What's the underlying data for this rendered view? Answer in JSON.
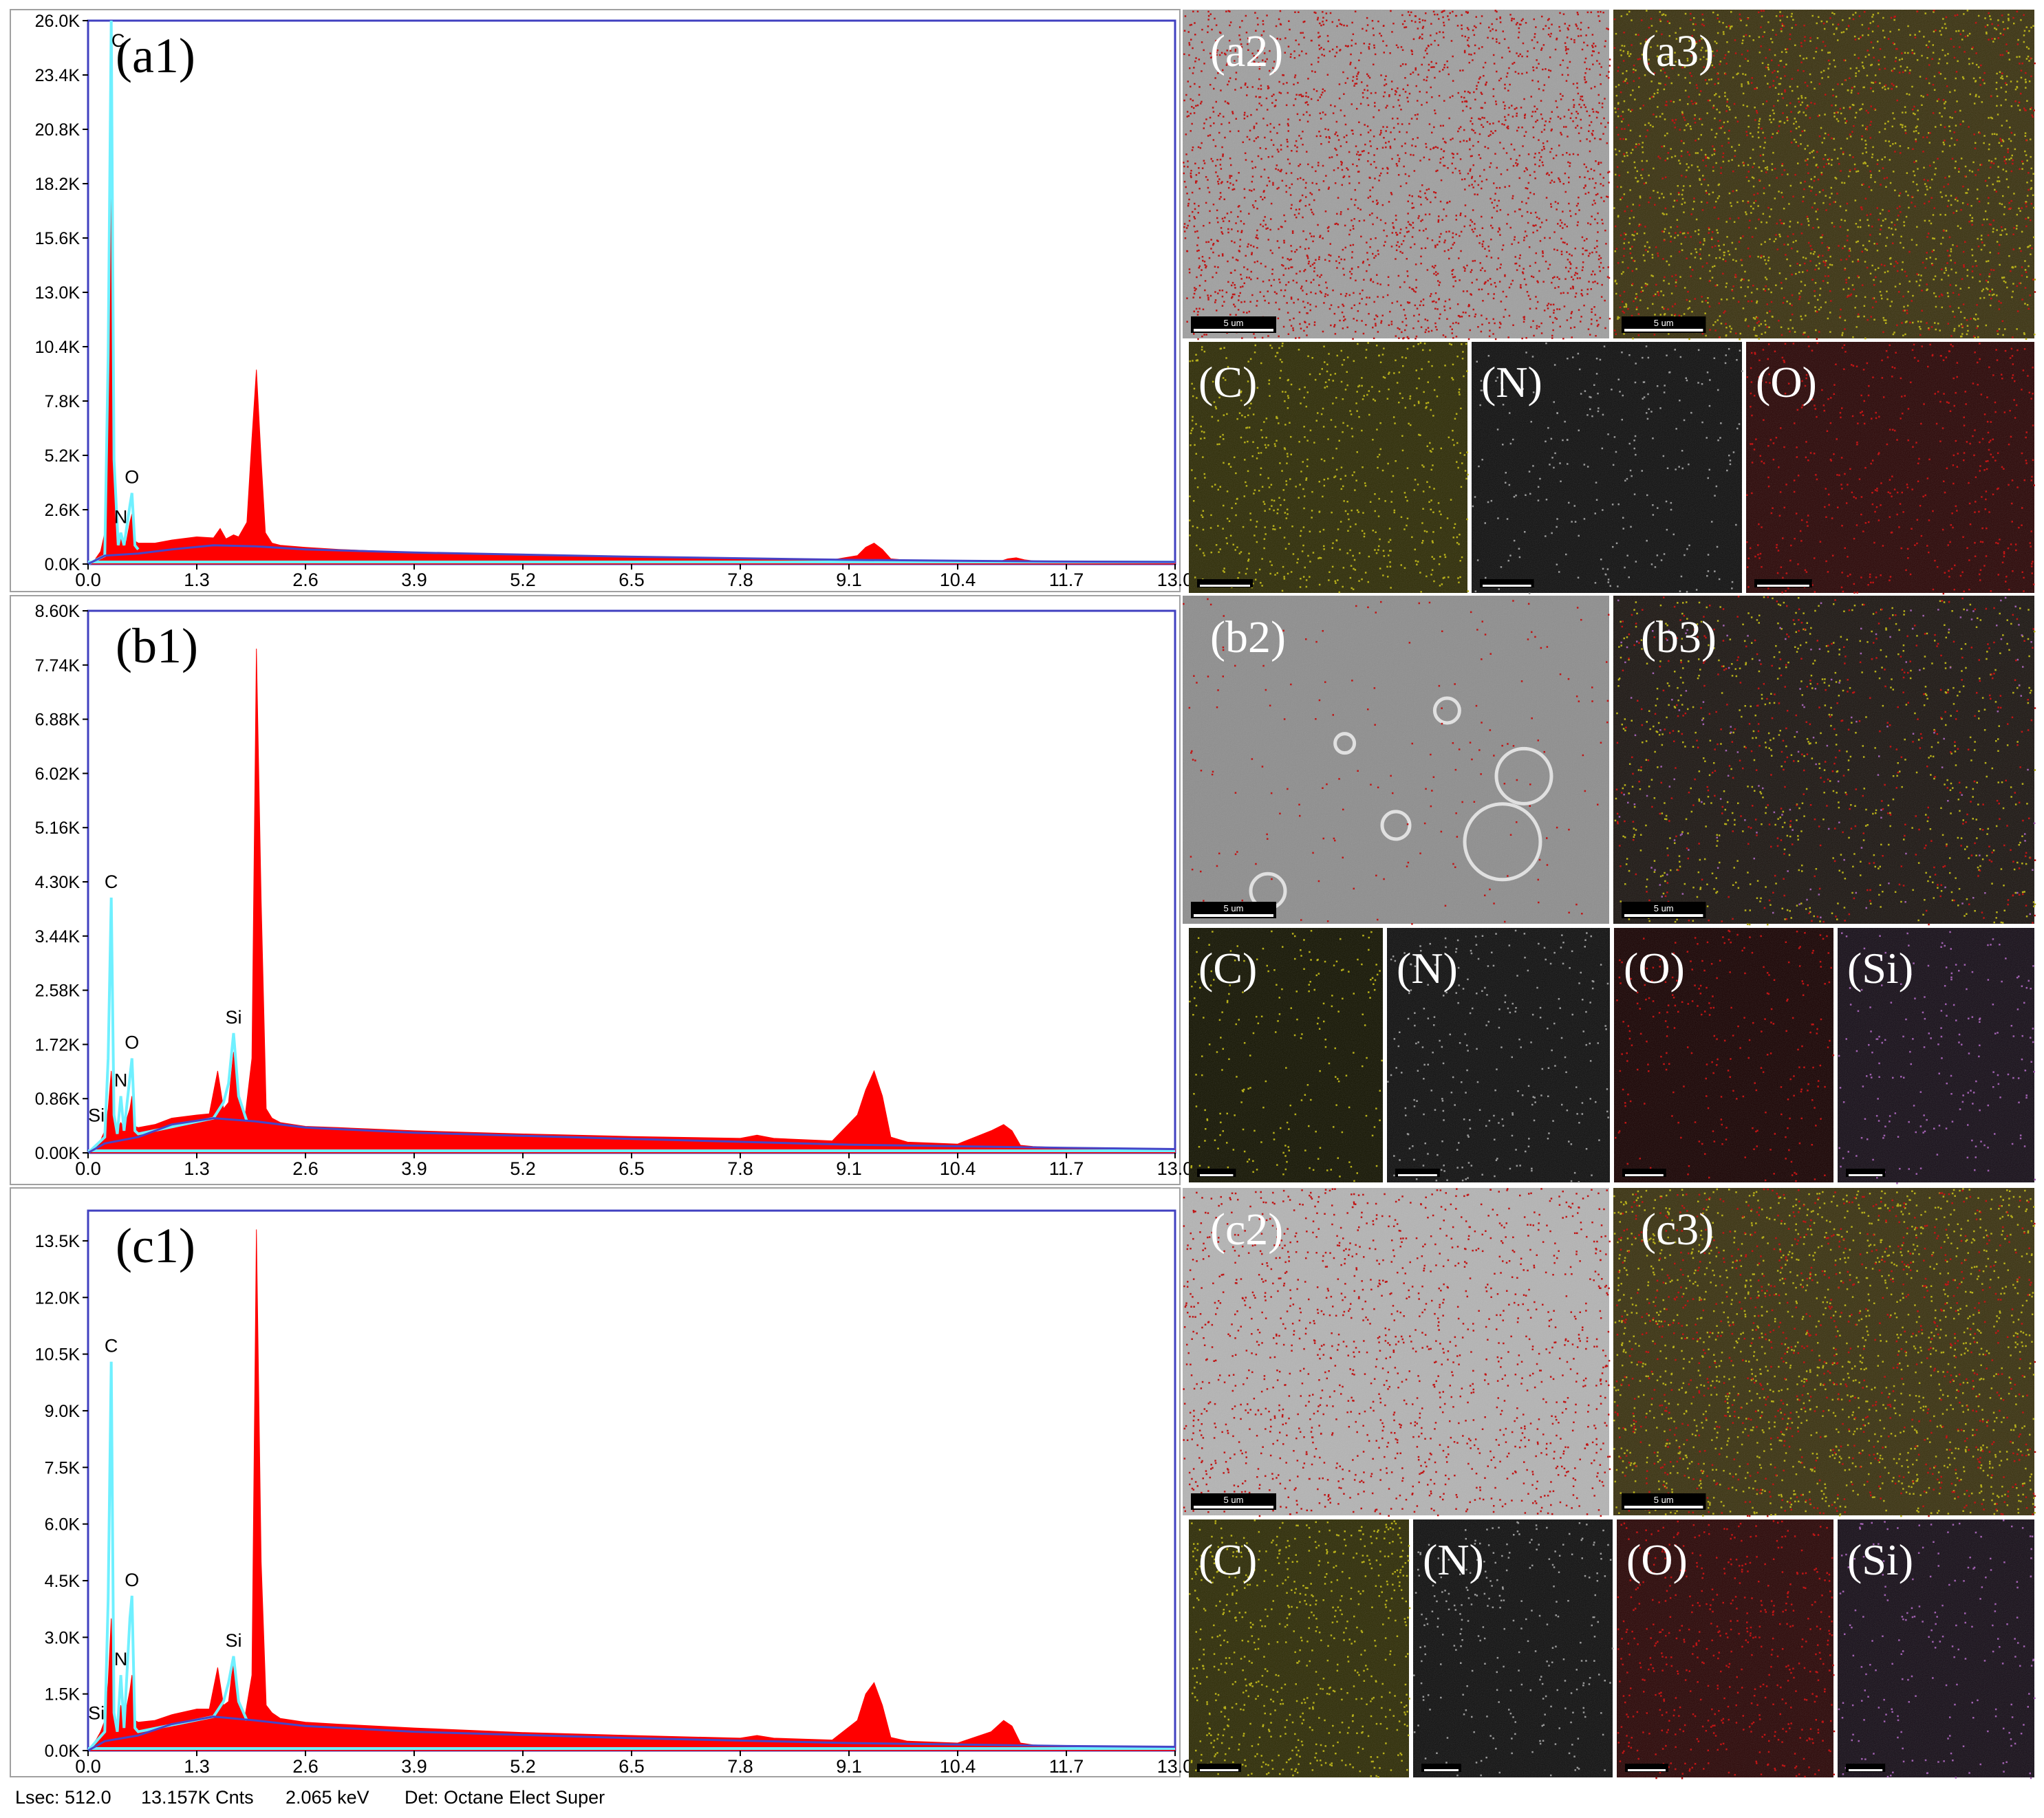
{
  "colors": {
    "spectrum_fill": "#ff0000",
    "spectrum_outline": "#6ff0ff",
    "background_line": "#4646c8",
    "frame_border": "#4040c0",
    "axis_text": "#000000",
    "carbon_map": "#b7b01a",
    "nitrogen_map": "#9a9a9a",
    "oxygen_map": "#c01515",
    "silicon_map": "#a060b0"
  },
  "spectra": [
    {
      "label": "(a1)",
      "peaks": [
        {
          "element": "C",
          "energy": 0.277
        },
        {
          "element": "N",
          "energy": 0.392
        },
        {
          "element": "O",
          "energy": 0.525
        }
      ]
    },
    {
      "label": "(b1)",
      "peaks": [
        {
          "element": "Si",
          "energy": 0.1
        },
        {
          "element": "C",
          "energy": 0.277
        },
        {
          "element": "N",
          "energy": 0.392
        },
        {
          "element": "O",
          "energy": 0.525
        },
        {
          "element": "Si",
          "energy": 1.74
        }
      ]
    },
    {
      "label": "(c1)",
      "peaks": [
        {
          "element": "Si",
          "energy": 0.1
        },
        {
          "element": "C",
          "energy": 0.277
        },
        {
          "element": "N",
          "energy": 0.392
        },
        {
          "element": "O",
          "energy": 0.525
        },
        {
          "element": "Si",
          "energy": 1.74
        }
      ]
    }
  ],
  "chart_data": [
    {
      "type": "area",
      "panel": "(a1)",
      "x_ticks": [
        "0.0",
        "1.3",
        "2.6",
        "3.9",
        "5.2",
        "6.5",
        "7.8",
        "9.1",
        "10.4",
        "11.7",
        "13.0"
      ],
      "y_ticks": [
        "0.0K",
        "2.6K",
        "5.2K",
        "7.8K",
        "10.4K",
        "13.0K",
        "15.6K",
        "18.2K",
        "20.8K",
        "23.4K",
        "26.0K"
      ],
      "xlim": [
        0,
        13.0
      ],
      "ylim": [
        0,
        26000
      ],
      "background": [
        [
          0,
          0
        ],
        [
          0.2,
          400
        ],
        [
          0.6,
          500
        ],
        [
          1.0,
          700
        ],
        [
          1.5,
          900
        ],
        [
          2.0,
          850
        ],
        [
          2.6,
          700
        ],
        [
          3.9,
          550
        ],
        [
          6.5,
          350
        ],
        [
          9.1,
          200
        ],
        [
          11.7,
          120
        ],
        [
          13.0,
          100
        ]
      ],
      "series": [
        {
          "x": [
            0.0,
            0.08,
            0.15,
            0.2,
            0.24,
            0.277,
            0.31,
            0.34,
            0.37,
            0.392,
            0.42,
            0.46,
            0.5,
            0.525,
            0.56,
            0.6,
            0.8,
            1.0,
            1.3,
            1.5,
            1.58,
            1.65,
            1.74,
            1.8,
            1.9,
            1.96,
            2.013,
            2.07,
            2.12,
            2.2,
            2.3,
            2.6,
            3.0,
            3.9,
            5.2,
            6.5,
            7.8,
            8.9,
            9.2,
            9.3,
            9.4,
            9.5,
            9.6,
            9.8,
            10.4,
            10.9,
            11.0,
            11.1,
            11.2,
            11.4,
            11.7,
            13.0
          ],
          "y": [
            0,
            200,
            600,
            1500,
            8000,
            20500,
            5000,
            1200,
            1000,
            1300,
            1000,
            1100,
            2000,
            2400,
            1100,
            1000,
            1000,
            1150,
            1300,
            1250,
            1700,
            1200,
            1400,
            1300,
            2000,
            6000,
            9300,
            5000,
            1500,
            1000,
            900,
            800,
            700,
            550,
            420,
            320,
            250,
            200,
            400,
            800,
            1000,
            700,
            250,
            180,
            140,
            120,
            250,
            300,
            200,
            110,
            100,
            80
          ]
        }
      ],
      "outline": {
        "x": [
          0.0,
          0.2,
          0.24,
          0.277,
          0.31,
          0.36,
          0.392,
          0.43,
          0.5,
          0.525,
          0.56,
          0.6
        ],
        "y": [
          0,
          400,
          10000,
          26000,
          5000,
          900,
          1500,
          900,
          2800,
          3400,
          900,
          700
        ]
      }
    },
    {
      "type": "area",
      "panel": "(b1)",
      "x_ticks": [
        "0.0",
        "1.3",
        "2.6",
        "3.9",
        "5.2",
        "6.5",
        "7.8",
        "9.1",
        "10.4",
        "11.7",
        "13.0"
      ],
      "y_ticks": [
        "0.00K",
        "0.86K",
        "1.72K",
        "2.58K",
        "3.44K",
        "4.30K",
        "5.16K",
        "6.02K",
        "6.88K",
        "7.74K",
        "8.60K"
      ],
      "xlim": [
        0,
        13.0
      ],
      "ylim": [
        0,
        8600
      ],
      "background": [
        [
          0,
          0
        ],
        [
          0.2,
          150
        ],
        [
          0.6,
          250
        ],
        [
          1.0,
          450
        ],
        [
          1.5,
          550
        ],
        [
          2.0,
          500
        ],
        [
          2.6,
          400
        ],
        [
          3.9,
          320
        ],
        [
          6.5,
          220
        ],
        [
          9.1,
          130
        ],
        [
          11.7,
          80
        ],
        [
          13.0,
          60
        ]
      ],
      "series": [
        {
          "x": [
            0.0,
            0.1,
            0.15,
            0.2,
            0.24,
            0.277,
            0.31,
            0.35,
            0.392,
            0.43,
            0.5,
            0.525,
            0.56,
            0.6,
            0.8,
            1.0,
            1.3,
            1.45,
            1.55,
            1.62,
            1.68,
            1.74,
            1.8,
            1.88,
            1.96,
            2.013,
            2.07,
            2.13,
            2.2,
            2.3,
            2.6,
            3.0,
            3.9,
            5.2,
            6.5,
            7.8,
            8.0,
            8.2,
            8.9,
            9.2,
            9.3,
            9.4,
            9.5,
            9.6,
            9.8,
            10.4,
            10.8,
            10.95,
            11.05,
            11.15,
            11.3,
            11.7,
            13.0
          ],
          "y": [
            0,
            120,
            200,
            350,
            700,
            1300,
            500,
            380,
            480,
            400,
            700,
            900,
            420,
            400,
            450,
            550,
            600,
            620,
            1300,
            700,
            800,
            1600,
            900,
            600,
            1500,
            8000,
            4000,
            700,
            550,
            480,
            420,
            400,
            350,
            300,
            260,
            230,
            280,
            230,
            190,
            600,
            1000,
            1300,
            900,
            250,
            170,
            140,
            350,
            450,
            350,
            120,
            100,
            80,
            60
          ]
        }
      ],
      "outline": {
        "x": [
          0.0,
          0.2,
          0.24,
          0.277,
          0.31,
          0.35,
          0.392,
          0.43,
          0.5,
          0.525,
          0.56,
          0.6,
          1.5,
          1.62,
          1.68,
          1.74,
          1.8,
          1.9
        ],
        "y": [
          0,
          250,
          1500,
          4050,
          600,
          300,
          900,
          350,
          1200,
          1500,
          350,
          300,
          550,
          800,
          1100,
          1900,
          900,
          500
        ]
      }
    },
    {
      "type": "area",
      "panel": "(c1)",
      "x_ticks": [
        "0.0",
        "1.3",
        "2.6",
        "3.9",
        "5.2",
        "6.5",
        "7.8",
        "9.1",
        "10.4",
        "11.7",
        "13.0"
      ],
      "y_ticks": [
        "0.0K",
        "1.5K",
        "3.0K",
        "4.5K",
        "6.0K",
        "7.5K",
        "9.0K",
        "10.5K",
        "12.0K",
        "13.5K"
      ],
      "xlim": [
        0,
        13.0
      ],
      "ylim": [
        0,
        14300
      ],
      "background": [
        [
          0,
          0
        ],
        [
          0.2,
          250
        ],
        [
          0.6,
          400
        ],
        [
          1.0,
          700
        ],
        [
          1.5,
          900
        ],
        [
          2.0,
          800
        ],
        [
          2.6,
          650
        ],
        [
          3.9,
          500
        ],
        [
          6.5,
          330
        ],
        [
          9.1,
          200
        ],
        [
          11.7,
          120
        ],
        [
          13.0,
          100
        ]
      ],
      "series": [
        {
          "x": [
            0.0,
            0.1,
            0.15,
            0.2,
            0.24,
            0.277,
            0.31,
            0.35,
            0.392,
            0.43,
            0.5,
            0.525,
            0.56,
            0.6,
            0.8,
            1.0,
            1.3,
            1.45,
            1.55,
            1.62,
            1.68,
            1.74,
            1.8,
            1.88,
            1.96,
            2.013,
            2.07,
            2.13,
            2.2,
            2.3,
            2.6,
            3.0,
            3.9,
            5.2,
            6.5,
            7.8,
            8.0,
            8.2,
            8.9,
            9.2,
            9.3,
            9.4,
            9.5,
            9.6,
            9.8,
            10.4,
            10.8,
            10.95,
            11.05,
            11.15,
            11.3,
            11.7,
            13.0
          ],
          "y": [
            0,
            300,
            500,
            800,
            1800,
            3500,
            1000,
            700,
            1200,
            800,
            1600,
            2000,
            800,
            750,
            800,
            950,
            1100,
            1100,
            2200,
            1200,
            1300,
            2400,
            1300,
            950,
            2000,
            13800,
            5000,
            1200,
            1000,
            850,
            750,
            700,
            600,
            480,
            400,
            330,
            400,
            330,
            280,
            800,
            1500,
            1800,
            1200,
            350,
            250,
            200,
            500,
            800,
            650,
            200,
            150,
            120,
            100
          ]
        }
      ],
      "outline": {
        "x": [
          0.0,
          0.2,
          0.24,
          0.277,
          0.31,
          0.35,
          0.392,
          0.43,
          0.5,
          0.525,
          0.56,
          0.6,
          1.5,
          1.62,
          1.68,
          1.74,
          1.8,
          1.9
        ],
        "y": [
          0,
          500,
          4000,
          10300,
          1000,
          500,
          2000,
          600,
          3500,
          4100,
          600,
          500,
          900,
          1300,
          1800,
          2500,
          1300,
          800
        ]
      }
    }
  ],
  "map_panels": [
    {
      "label": "(a2)",
      "kind": "overlay-oxygen",
      "scale": "5 um"
    },
    {
      "label": "(a3)",
      "kind": "overlay-combined",
      "scale": "5 um"
    },
    {
      "label": "(C)",
      "kind": "carbon",
      "scale": "5 um"
    },
    {
      "label": "(N)",
      "kind": "nitrogen",
      "scale": "5 um"
    },
    {
      "label": "(O)",
      "kind": "oxygen",
      "scale": "5 um"
    },
    {
      "label": "(b2)",
      "kind": "sem-sparse",
      "scale": "5 um"
    },
    {
      "label": "(b3)",
      "kind": "overlay-dark",
      "scale": "5 um"
    },
    {
      "label": "(C)",
      "kind": "carbon-dark",
      "scale": "5 um"
    },
    {
      "label": "(N)",
      "kind": "nitrogen",
      "scale": "5 um"
    },
    {
      "label": "(O)",
      "kind": "oxygen-dark",
      "scale": "5 um"
    },
    {
      "label": "(Si)",
      "kind": "silicon",
      "scale": "5 um"
    },
    {
      "label": "(c2)",
      "kind": "sem-dense",
      "scale": "5 um"
    },
    {
      "label": "(c3)",
      "kind": "overlay-combined",
      "scale": "5 um"
    },
    {
      "label": "(C)",
      "kind": "carbon",
      "scale": "5 um"
    },
    {
      "label": "(N)",
      "kind": "nitrogen",
      "scale": "5 um"
    },
    {
      "label": "(O)",
      "kind": "oxygen",
      "scale": "5 um"
    },
    {
      "label": "(Si)",
      "kind": "silicon",
      "scale": "5 um"
    }
  ],
  "status_bar": {
    "lsec": "Lsec: 512.0",
    "counts": "13.157K Cnts",
    "energy": "2.065 keV",
    "detector": "Det: Octane Elect Super"
  }
}
